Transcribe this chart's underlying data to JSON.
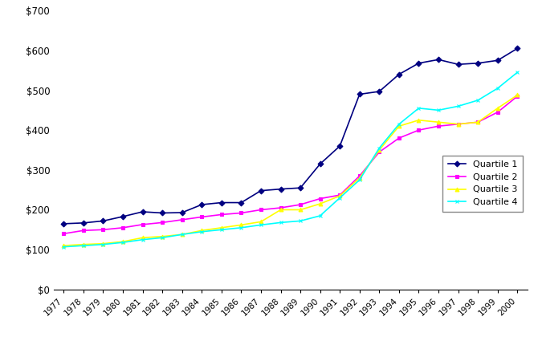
{
  "years": [
    1977,
    1978,
    1979,
    1980,
    1981,
    1982,
    1983,
    1984,
    1985,
    1986,
    1987,
    1988,
    1989,
    1990,
    1991,
    1992,
    1993,
    1994,
    1995,
    1996,
    1997,
    1998,
    1999,
    2000
  ],
  "quartile1": [
    165,
    167,
    172,
    183,
    195,
    192,
    193,
    213,
    218,
    218,
    248,
    252,
    255,
    315,
    360,
    490,
    497,
    540,
    568,
    577,
    565,
    568,
    575,
    605
  ],
  "quartile2": [
    140,
    148,
    150,
    155,
    163,
    168,
    175,
    182,
    188,
    192,
    200,
    205,
    213,
    228,
    237,
    285,
    345,
    380,
    400,
    410,
    415,
    420,
    445,
    485
  ],
  "quartile3": [
    110,
    113,
    115,
    120,
    130,
    133,
    138,
    148,
    155,
    162,
    170,
    200,
    200,
    215,
    235,
    280,
    350,
    410,
    425,
    420,
    415,
    420,
    455,
    488
  ],
  "quartile4": [
    107,
    110,
    113,
    118,
    125,
    130,
    138,
    145,
    150,
    155,
    162,
    168,
    172,
    185,
    230,
    275,
    355,
    415,
    455,
    450,
    460,
    475,
    505,
    545
  ],
  "colors": {
    "quartile1": "#000080",
    "quartile2": "#FF00FF",
    "quartile3": "#FFFF00",
    "quartile4": "#00FFFF"
  },
  "markers": {
    "quartile1": "D",
    "quartile2": "s",
    "quartile3": "^",
    "quartile4": "x"
  },
  "labels": {
    "quartile1": "Quartile 1",
    "quartile2": "Quartile 2",
    "quartile3": "Quartile 3",
    "quartile4": "Quartile 4"
  },
  "ylim": [
    0,
    700
  ],
  "yticks": [
    0,
    100,
    200,
    300,
    400,
    500,
    600,
    700
  ],
  "ytick_labels": [
    "$0",
    "$100",
    "$200",
    "$300",
    "$400",
    "$500",
    "$600",
    "$700"
  ],
  "background_color": "#ffffff",
  "line_width": 1.2,
  "marker_size": 3.5,
  "marker_edge_width": 0.8,
  "tick_label_rotation": 45,
  "tick_label_fontsize": 7.5,
  "ytick_label_fontsize": 8.5
}
